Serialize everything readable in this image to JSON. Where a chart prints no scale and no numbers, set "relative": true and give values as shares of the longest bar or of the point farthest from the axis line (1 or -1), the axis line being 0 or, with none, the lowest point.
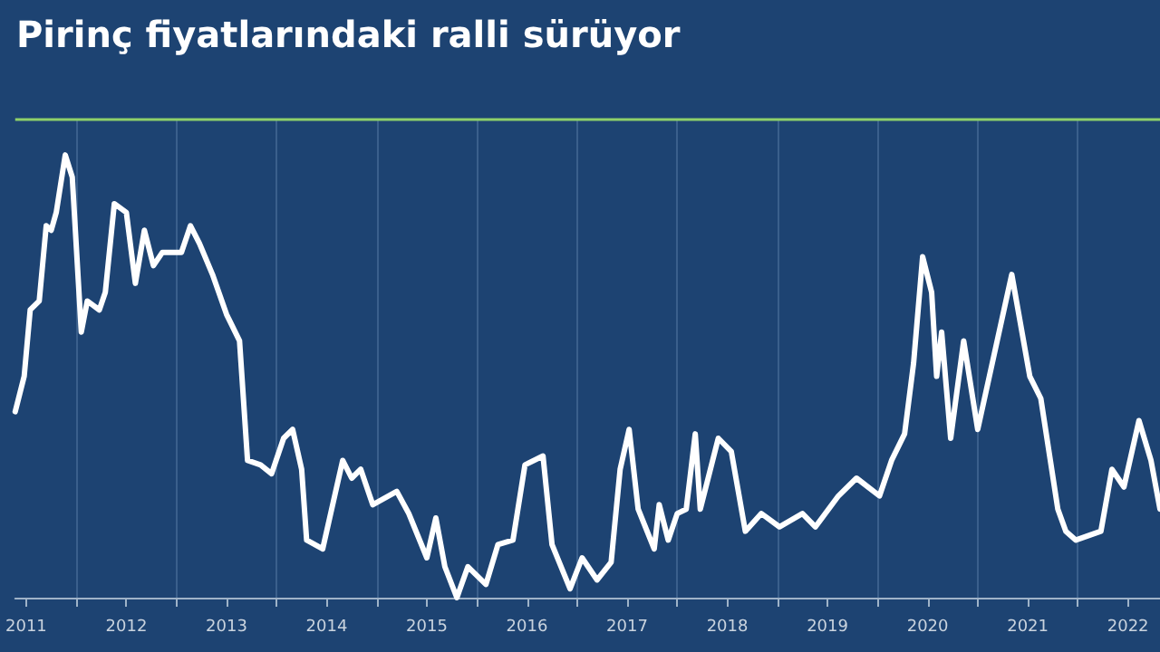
{
  "chart_data": {
    "type": "line",
    "title": "Pirinç fiyatlarındaki ralli sürüyor",
    "relative": true,
    "grid": "x",
    "xlim": [
      2011.39,
      2022.82
    ],
    "xticks": [
      {
        "value": 2011.5,
        "label": "2011"
      },
      {
        "value": 2012,
        "label": null
      },
      {
        "value": 2012.5,
        "label": "2012"
      },
      {
        "value": 2013,
        "label": null
      },
      {
        "value": 2013.5,
        "label": "2013"
      },
      {
        "value": 2014,
        "label": null
      },
      {
        "value": 2014.5,
        "label": "2014"
      },
      {
        "value": 2015,
        "label": null
      },
      {
        "value": 2015.5,
        "label": "2015"
      },
      {
        "value": 2016,
        "label": null
      },
      {
        "value": 2016.5,
        "label": "2016"
      },
      {
        "value": 2017,
        "label": null
      },
      {
        "value": 2017.5,
        "label": "2017"
      },
      {
        "value": 2018,
        "label": null
      },
      {
        "value": 2018.5,
        "label": "2018"
      },
      {
        "value": 2019,
        "label": null
      },
      {
        "value": 2019.5,
        "label": "2019"
      },
      {
        "value": 2020,
        "label": null
      },
      {
        "value": 2020.5,
        "label": "2020"
      },
      {
        "value": 2021,
        "label": null
      },
      {
        "value": 2021.5,
        "label": "2021"
      },
      {
        "value": 2022,
        "label": null
      },
      {
        "value": 2022.5,
        "label": "2022"
      }
    ],
    "ref_lines": [
      {
        "axis": "y",
        "value": 1.08,
        "label": null,
        "color": "#8fd16a"
      }
    ],
    "series": [
      {
        "color": "#ffffff",
        "x": [
          2011.39,
          2011.48,
          2011.54,
          2011.63,
          2011.7,
          2011.75,
          2011.8,
          2011.89,
          2011.96,
          2012.05,
          2012.11,
          2012.23,
          2012.29,
          2012.38,
          2012.5,
          2012.59,
          2012.68,
          2012.77,
          2012.86,
          2013.05,
          2013.14,
          2013.23,
          2013.36,
          2013.5,
          2013.63,
          2013.71,
          2013.84,
          2013.95,
          2014.07,
          2014.16,
          2014.25,
          2014.3,
          2014.46,
          2014.66,
          2014.75,
          2014.84,
          2014.96,
          2015.2,
          2015.32,
          2015.5,
          2015.59,
          2015.68,
          2015.8,
          2015.91,
          2016.09,
          2016.21,
          2016.36,
          2016.48,
          2016.66,
          2016.75,
          2016.93,
          2017.05,
          2017.2,
          2017.34,
          2017.43,
          2017.52,
          2017.61,
          2017.77,
          2017.82,
          2017.91,
          2018.0,
          2018.09,
          2018.18,
          2018.23,
          2018.41,
          2018.54,
          2018.68,
          2018.84,
          2019.02,
          2019.25,
          2019.38,
          2019.61,
          2019.79,
          2020.02,
          2020.14,
          2020.27,
          2020.36,
          2020.45,
          2020.54,
          2020.59,
          2020.64,
          2020.73,
          2020.86,
          2021.0,
          2021.34,
          2021.52,
          2021.63,
          2021.8,
          2021.88,
          2021.98,
          2022.23,
          2022.34,
          2022.46,
          2022.61,
          2022.73,
          2022.82
        ],
        "values": [
          0.42,
          0.5,
          0.65,
          0.67,
          0.84,
          0.83,
          0.87,
          1,
          0.95,
          0.6,
          0.67,
          0.65,
          0.69,
          0.89,
          0.87,
          0.71,
          0.83,
          0.75,
          0.78,
          0.78,
          0.84,
          0.8,
          0.73,
          0.64,
          0.58,
          0.31,
          0.3,
          0.28,
          0.36,
          0.38,
          0.29,
          0.13,
          0.11,
          0.31,
          0.27,
          0.29,
          0.21,
          0.24,
          0.19,
          0.09,
          0.18,
          0.07,
          0,
          0.07,
          0.03,
          0.12,
          0.13,
          0.3,
          0.32,
          0.12,
          0.02,
          0.09,
          0.04,
          0.08,
          0.29,
          0.38,
          0.2,
          0.11,
          0.21,
          0.13,
          0.19,
          0.2,
          0.37,
          0.2,
          0.36,
          0.33,
          0.15,
          0.19,
          0.16,
          0.19,
          0.16,
          0.23,
          0.27,
          0.23,
          0.31,
          0.37,
          0.53,
          0.77,
          0.69,
          0.5,
          0.6,
          0.36,
          0.58,
          0.38,
          0.73,
          0.5,
          0.45,
          0.2,
          0.15,
          0.13,
          0.15,
          0.29,
          0.25,
          0.4,
          0.31,
          0.2
        ]
      }
    ]
  }
}
